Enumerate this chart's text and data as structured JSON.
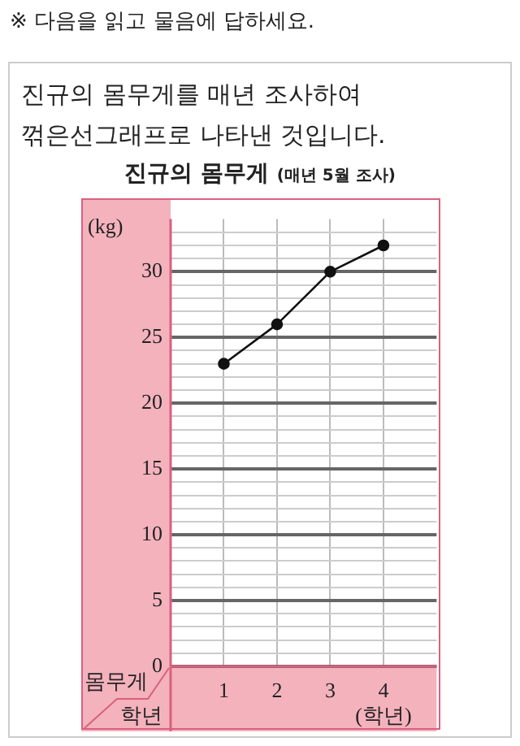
{
  "chart_data": {
    "type": "line",
    "title": "진규의 몸무게",
    "subtitle": "(매년 5월 조사)",
    "ylabel": "(kg)",
    "xlabel": "(학년)",
    "annotations": [
      "※ 다음을 읽고 물음에 답하세요.",
      "진규의 몸무게를 매년 조사하여 꺾은선그래프로 나타낸 것입니다.",
      "몸무게",
      "학년"
    ],
    "x": [
      1,
      2,
      3,
      4
    ],
    "values": [
      23,
      26,
      30,
      32
    ],
    "color": "#111111",
    "marker": "circle",
    "line_style": "solid",
    "grid": true,
    "xlim": [
      0,
      5
    ],
    "xticks": [
      1,
      2,
      3,
      4
    ],
    "ylim": [
      0,
      34
    ],
    "yticks": [
      0,
      {
        "value": 1,
        "label": null
      },
      {
        "value": 2,
        "label": null
      },
      {
        "value": 3,
        "label": null
      },
      {
        "value": 4,
        "label": null
      },
      5,
      {
        "value": 6,
        "label": null
      },
      {
        "value": 7,
        "label": null
      },
      {
        "value": 8,
        "label": null
      },
      {
        "value": 9,
        "label": null
      },
      10,
      {
        "value": 11,
        "label": null
      },
      {
        "value": 12,
        "label": null
      },
      {
        "value": 13,
        "label": null
      },
      {
        "value": 14,
        "label": null
      },
      15,
      {
        "value": 16,
        "label": null
      },
      {
        "value": 17,
        "label": null
      },
      {
        "value": 18,
        "label": null
      },
      {
        "value": 19,
        "label": null
      },
      20,
      {
        "value": 21,
        "label": null
      },
      {
        "value": 22,
        "label": null
      },
      {
        "value": 23,
        "label": null
      },
      {
        "value": 24,
        "label": null
      },
      25,
      {
        "value": 26,
        "label": null
      },
      {
        "value": 27,
        "label": null
      },
      {
        "value": 28,
        "label": null
      },
      {
        "value": 29,
        "label": null
      },
      30,
      {
        "value": 31,
        "label": null
      },
      {
        "value": 32,
        "label": null
      },
      {
        "value": 33,
        "label": null
      }
    ]
  }
}
